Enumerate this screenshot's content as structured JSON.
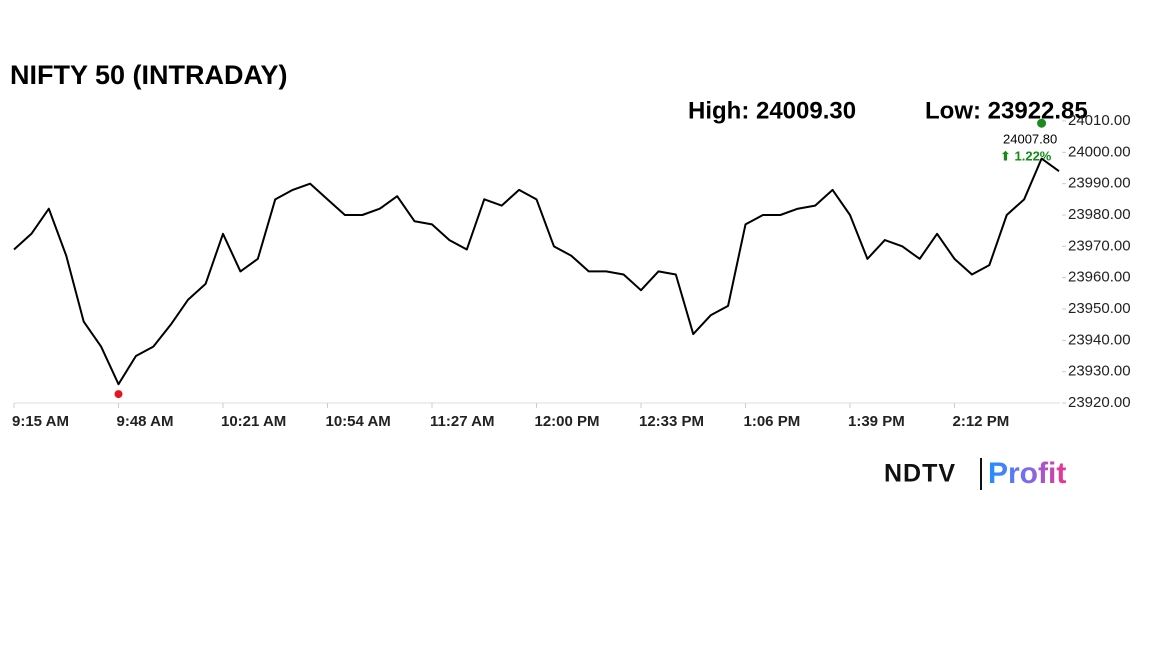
{
  "chart_data": {
    "type": "line",
    "title": "NIFTY 50 (INTRADAY)",
    "high": {
      "value": 24009.3,
      "label": "High: 24009.30"
    },
    "low": {
      "value": 23922.85,
      "label": "Low: 23922.85"
    },
    "last": {
      "value": 24007.8,
      "label": "24007.80"
    },
    "change_label": "⬆ 1.22%",
    "categories": [
      "9:15 AM",
      null,
      null,
      null,
      null,
      null,
      "9:48 AM",
      null,
      null,
      null,
      null,
      null,
      "10:21 AM",
      null,
      null,
      null,
      null,
      null,
      "10:54 AM",
      null,
      null,
      null,
      null,
      null,
      "11:27 AM",
      null,
      null,
      null,
      null,
      null,
      "12:00 PM",
      null,
      null,
      null,
      null,
      null,
      "12:33 PM",
      null,
      null,
      null,
      null,
      null,
      "1:06 PM",
      null,
      null,
      null,
      null,
      null,
      "1:39 PM",
      null,
      null,
      null,
      null,
      null,
      "2:12 PM",
      null,
      null,
      null,
      null,
      null,
      null
    ],
    "series": [
      {
        "name": "NIFTY 50",
        "color": "#000000",
        "values": [
          23969,
          23974,
          23982,
          23967,
          23946,
          23938,
          23926,
          23935,
          23938,
          23945,
          23953,
          23958,
          23974,
          23962,
          23966,
          23985,
          23988,
          23990,
          23985,
          23980,
          23980,
          23982,
          23986,
          23978,
          23977,
          23972,
          23969,
          23985,
          23983,
          23988,
          23985,
          23970,
          23967,
          23962,
          23962,
          23961,
          23956,
          23962,
          23961,
          23942,
          23948,
          23951,
          23977,
          23980,
          23980,
          23982,
          23983,
          23988,
          23980,
          23966,
          23972,
          23970,
          23966,
          23974,
          23966,
          23961,
          23964,
          23980,
          23985,
          23998,
          23994
        ]
      }
    ],
    "ylim": [
      23920,
      24010
    ],
    "yticks": [
      {
        "value": 23920,
        "label": "23920.00"
      },
      {
        "value": 23930,
        "label": "23930.00"
      },
      {
        "value": 23940,
        "label": "23940.00"
      },
      {
        "value": 23950,
        "label": "23950.00"
      },
      {
        "value": 23960,
        "label": "23960.00"
      },
      {
        "value": 23970,
        "label": "23970.00"
      },
      {
        "value": 23980,
        "label": "23980.00"
      },
      {
        "value": 23990,
        "label": "23990.00"
      },
      {
        "value": 24000,
        "label": "24000.00"
      },
      {
        "value": 24010,
        "label": "24010.00"
      }
    ],
    "high_color": "#1e8a1e",
    "low_color": "#e8141e",
    "change_color": "#148c14",
    "grid": false
  },
  "brand": {
    "left": "NDTV",
    "right": "Profit"
  }
}
